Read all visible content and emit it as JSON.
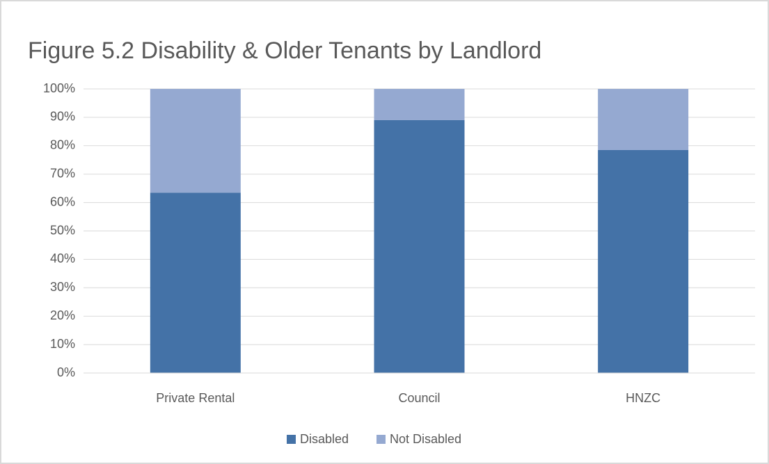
{
  "chart_data": {
    "type": "bar",
    "stacked": true,
    "title": "Figure 5.2 Disability & Older Tenants by Landlord",
    "categories": [
      "Private Rental",
      "Council",
      "HNZC"
    ],
    "series": [
      {
        "name": "Disabled",
        "color": "#4472a7",
        "values": [
          63.5,
          89,
          78.5
        ]
      },
      {
        "name": "Not Disabled",
        "color": "#95a9d1",
        "values": [
          36.5,
          11,
          21.5
        ]
      }
    ],
    "ylim": [
      0,
      100
    ],
    "yticks": [
      {
        "value": 0,
        "label": "0%"
      },
      {
        "value": 10,
        "label": "10%"
      },
      {
        "value": 20,
        "label": "20%"
      },
      {
        "value": 30,
        "label": "30%"
      },
      {
        "value": 40,
        "label": "40%"
      },
      {
        "value": 50,
        "label": "50%"
      },
      {
        "value": 60,
        "label": "60%"
      },
      {
        "value": 70,
        "label": "70%"
      },
      {
        "value": 80,
        "label": "80%"
      },
      {
        "value": 90,
        "label": "90%"
      },
      {
        "value": 100,
        "label": "100%"
      }
    ],
    "grid": true,
    "legend": "bottom"
  }
}
